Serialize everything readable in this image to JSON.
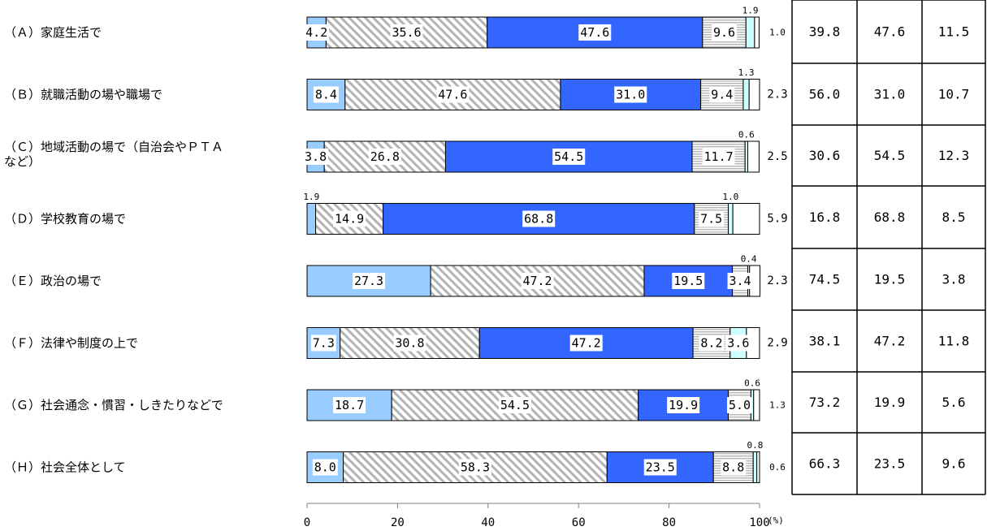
{
  "chart_data": {
    "type": "bar",
    "orientation": "horizontal",
    "stacked": true,
    "categories": [
      "（Ａ）家庭生活で",
      "（Ｂ）就職活動の場や職場で",
      "（Ｃ）地域活動の場で（自治会やＰＴＡ\nなど）",
      "（Ｄ）学校教育の場で",
      "（Ｅ）政治の場で",
      "（Ｆ）法律や制度の上で",
      "（Ｇ）社会通念・慣習・しきたりなどで",
      "（Ｈ）社会全体として"
    ],
    "series": [
      {
        "color": "#99ccff",
        "pattern": "solid",
        "values": [
          4.2,
          8.4,
          3.8,
          1.9,
          27.3,
          7.3,
          18.7,
          8.0
        ]
      },
      {
        "color": "#bfbfbf",
        "pattern": "diagonal-hatch",
        "values": [
          35.6,
          47.6,
          26.8,
          14.9,
          47.2,
          30.8,
          54.5,
          58.3
        ]
      },
      {
        "color": "#3366ff",
        "pattern": "solid",
        "values": [
          47.6,
          31.0,
          54.5,
          68.8,
          19.5,
          47.2,
          19.9,
          23.5
        ]
      },
      {
        "color": "#c0c0c0",
        "pattern": "horizontal-stripes",
        "values": [
          9.6,
          9.4,
          11.7,
          7.5,
          3.4,
          8.2,
          5.0,
          8.8
        ]
      },
      {
        "color": "#ccffff",
        "pattern": "solid",
        "values": [
          1.9,
          1.3,
          0.6,
          1.0,
          0.4,
          3.6,
          0.6,
          0.8
        ]
      },
      {
        "color": "#ffffff",
        "pattern": "solid",
        "values": [
          1.0,
          2.3,
          2.5,
          5.9,
          2.3,
          2.9,
          1.3,
          0.6
        ]
      }
    ],
    "xlim": [
      0,
      100
    ],
    "xticks": [
      "0",
      "20",
      "40",
      "60",
      "80",
      "100"
    ],
    "unit": "(%)",
    "grid": false,
    "legend": "none",
    "summary_table": [
      [
        "39.8",
        "47.6",
        "11.5"
      ],
      [
        "56.0",
        "31.0",
        "10.7"
      ],
      [
        "30.6",
        "54.5",
        "12.3"
      ],
      [
        "16.8",
        "68.8",
        "8.5"
      ],
      [
        "74.5",
        "19.5",
        "3.8"
      ],
      [
        "38.1",
        "47.2",
        "11.8"
      ],
      [
        "73.2",
        "19.9",
        "5.6"
      ],
      [
        "66.3",
        "23.5",
        "9.6"
      ]
    ]
  }
}
